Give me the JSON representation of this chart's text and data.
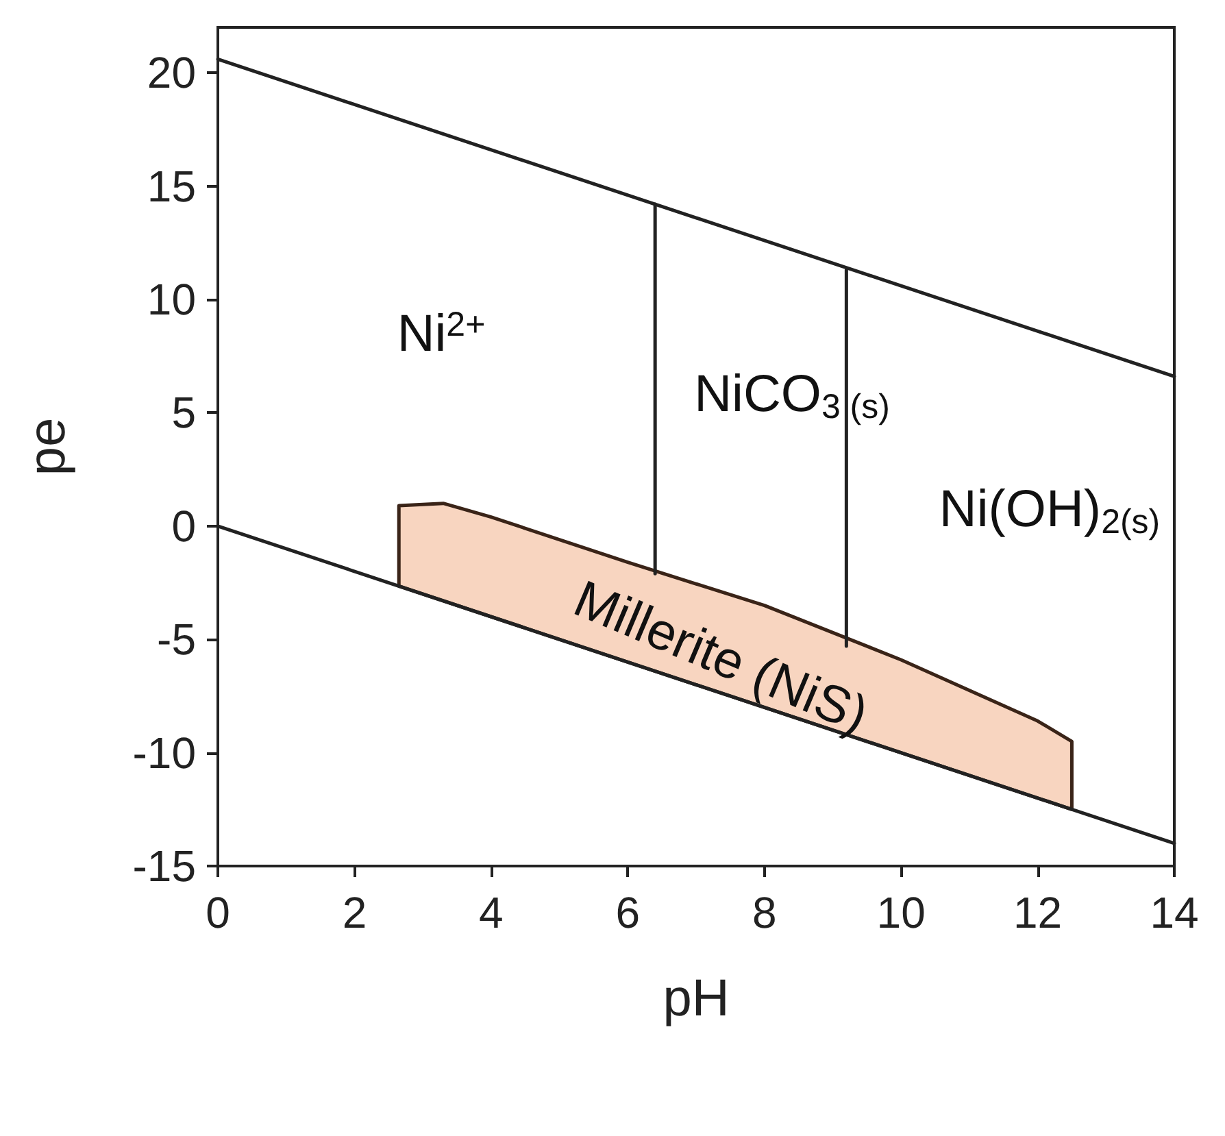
{
  "chart_data": {
    "type": "line",
    "xlabel": "pH",
    "ylabel": "pe",
    "xlim": [
      0,
      14
    ],
    "xticks": [
      0,
      2,
      4,
      6,
      8,
      10,
      12,
      14
    ],
    "ylim": [
      -15,
      22
    ],
    "yticks": [
      -15,
      -10,
      -5,
      0,
      5,
      10,
      15,
      20
    ],
    "grid": false,
    "marker": "none",
    "line_style": "solid",
    "series": [
      {
        "color": "#222222",
        "x": [
          0,
          14
        ],
        "values": [
          20.6,
          6.6
        ]
      },
      {
        "color": "#222222",
        "x": [
          0,
          14
        ],
        "values": [
          0,
          -14
        ]
      },
      {
        "color": "#222222",
        "x": [
          6.4,
          6.4
        ],
        "values": [
          -2.1,
          14.2
        ]
      },
      {
        "color": "#222222",
        "x": [
          9.2,
          9.2
        ],
        "values": [
          -5.3,
          11.3
        ]
      },
      {
        "type": "area",
        "color": "#f8d5c0",
        "x": [
          2.65,
          3.3,
          4,
          6,
          8,
          10,
          12,
          12.5,
          12.5,
          2.65
        ],
        "values": [
          0.9,
          1.0,
          0.4,
          -1.6,
          -3.5,
          -5.9,
          -8.6,
          -9.5,
          -12.5,
          -2.65
        ]
      }
    ],
    "annotations": [
      "Ni$^{2+}$",
      "NiCO$_{3 (s)}$",
      "Ni(OH)$_{2(s)}$",
      "Millerite (NiS)"
    ]
  }
}
